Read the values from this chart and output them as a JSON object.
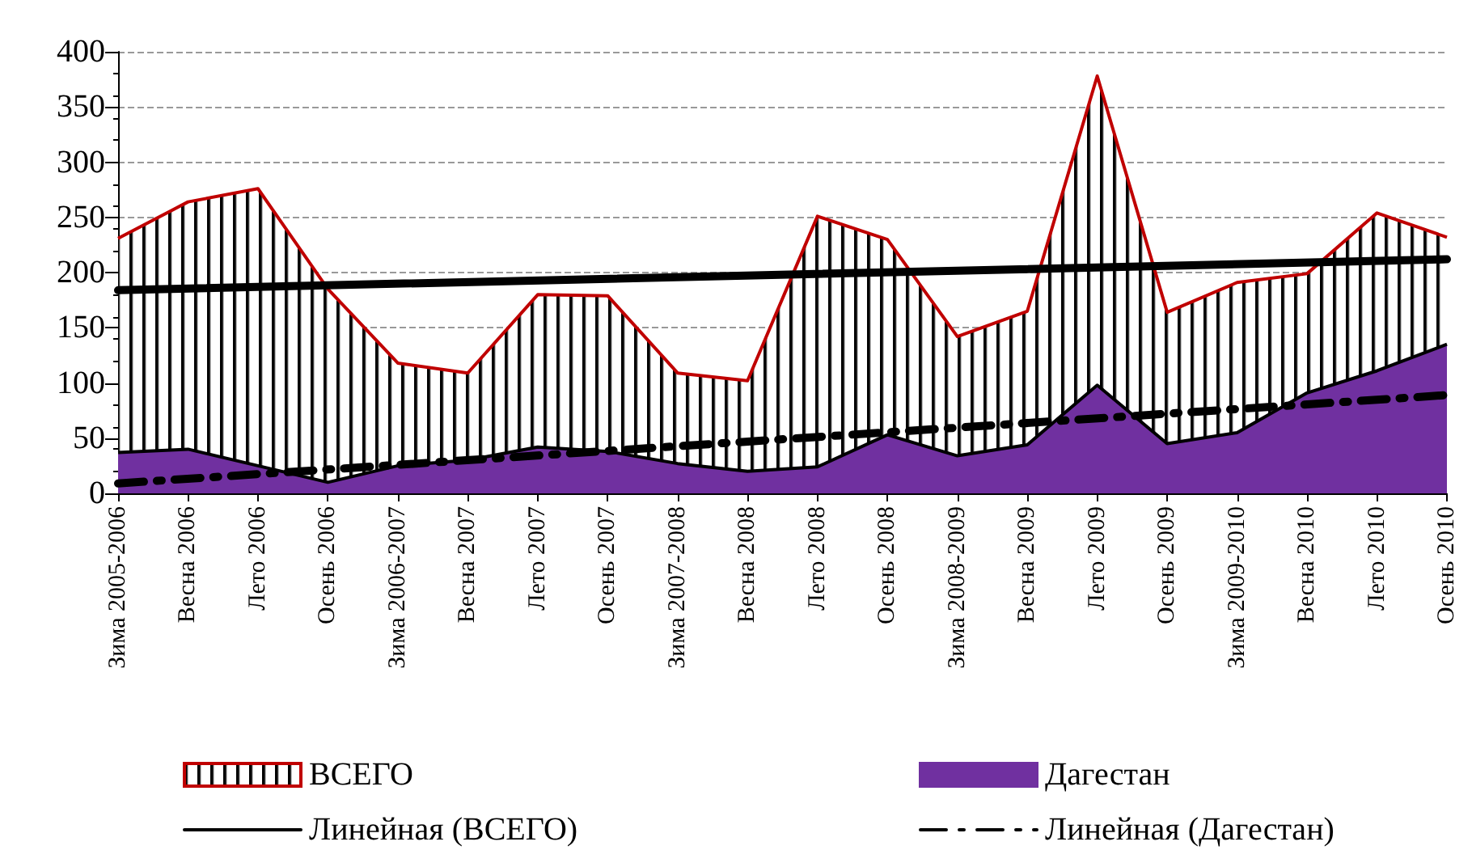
{
  "chart_data": {
    "type": "area",
    "categories": [
      "Зима 2005-2006",
      "Весна 2006",
      "Лето 2006",
      "Осень 2006",
      "Зима 2006-2007",
      "Весна 2007",
      "Лето 2007",
      "Осень 2007",
      "Зима 2007-2008",
      "Весна 2008",
      "Лето 2008",
      "Осень 2008",
      "Зима 2008-2009",
      "Весна 2009",
      "Лето 2009",
      "Осень 2009",
      "Зима 2009-2010",
      "Весна 2010",
      "Лето 2010",
      "Осень 2010"
    ],
    "series": [
      {
        "name": "ВСЕГО",
        "color": "#c00000",
        "values": [
          231,
          264,
          276,
          185,
          118,
          109,
          180,
          179,
          109,
          102,
          251,
          230,
          142,
          165,
          378,
          164,
          191,
          199,
          254,
          232
        ]
      },
      {
        "name": "Дагестан",
        "color": "#7030a0",
        "values": [
          37,
          40,
          25,
          10,
          25,
          30,
          42,
          38,
          27,
          20,
          24,
          53,
          34,
          44,
          98,
          45,
          55,
          91,
          111,
          135
        ]
      },
      {
        "name": "Линейная (ВСЕГО)",
        "type": "line",
        "color": "#000000",
        "line_style": "solid",
        "x": [
          "Зима 2005-2006",
          "Осень 2010"
        ],
        "values": [
          184,
          212
        ]
      },
      {
        "name": "Линейная (Дагестан)",
        "type": "line",
        "color": "#000000",
        "line_style": "dashed",
        "x": [
          "Зима 2005-2006",
          "Осень 2010"
        ],
        "values": [
          9,
          89
        ]
      }
    ],
    "ylim": [
      0,
      400
    ],
    "yticks": [
      0,
      50,
      100,
      150,
      200,
      250,
      300,
      350,
      400
    ],
    "grid": "y",
    "legend": "bottom",
    "marker": "none"
  }
}
